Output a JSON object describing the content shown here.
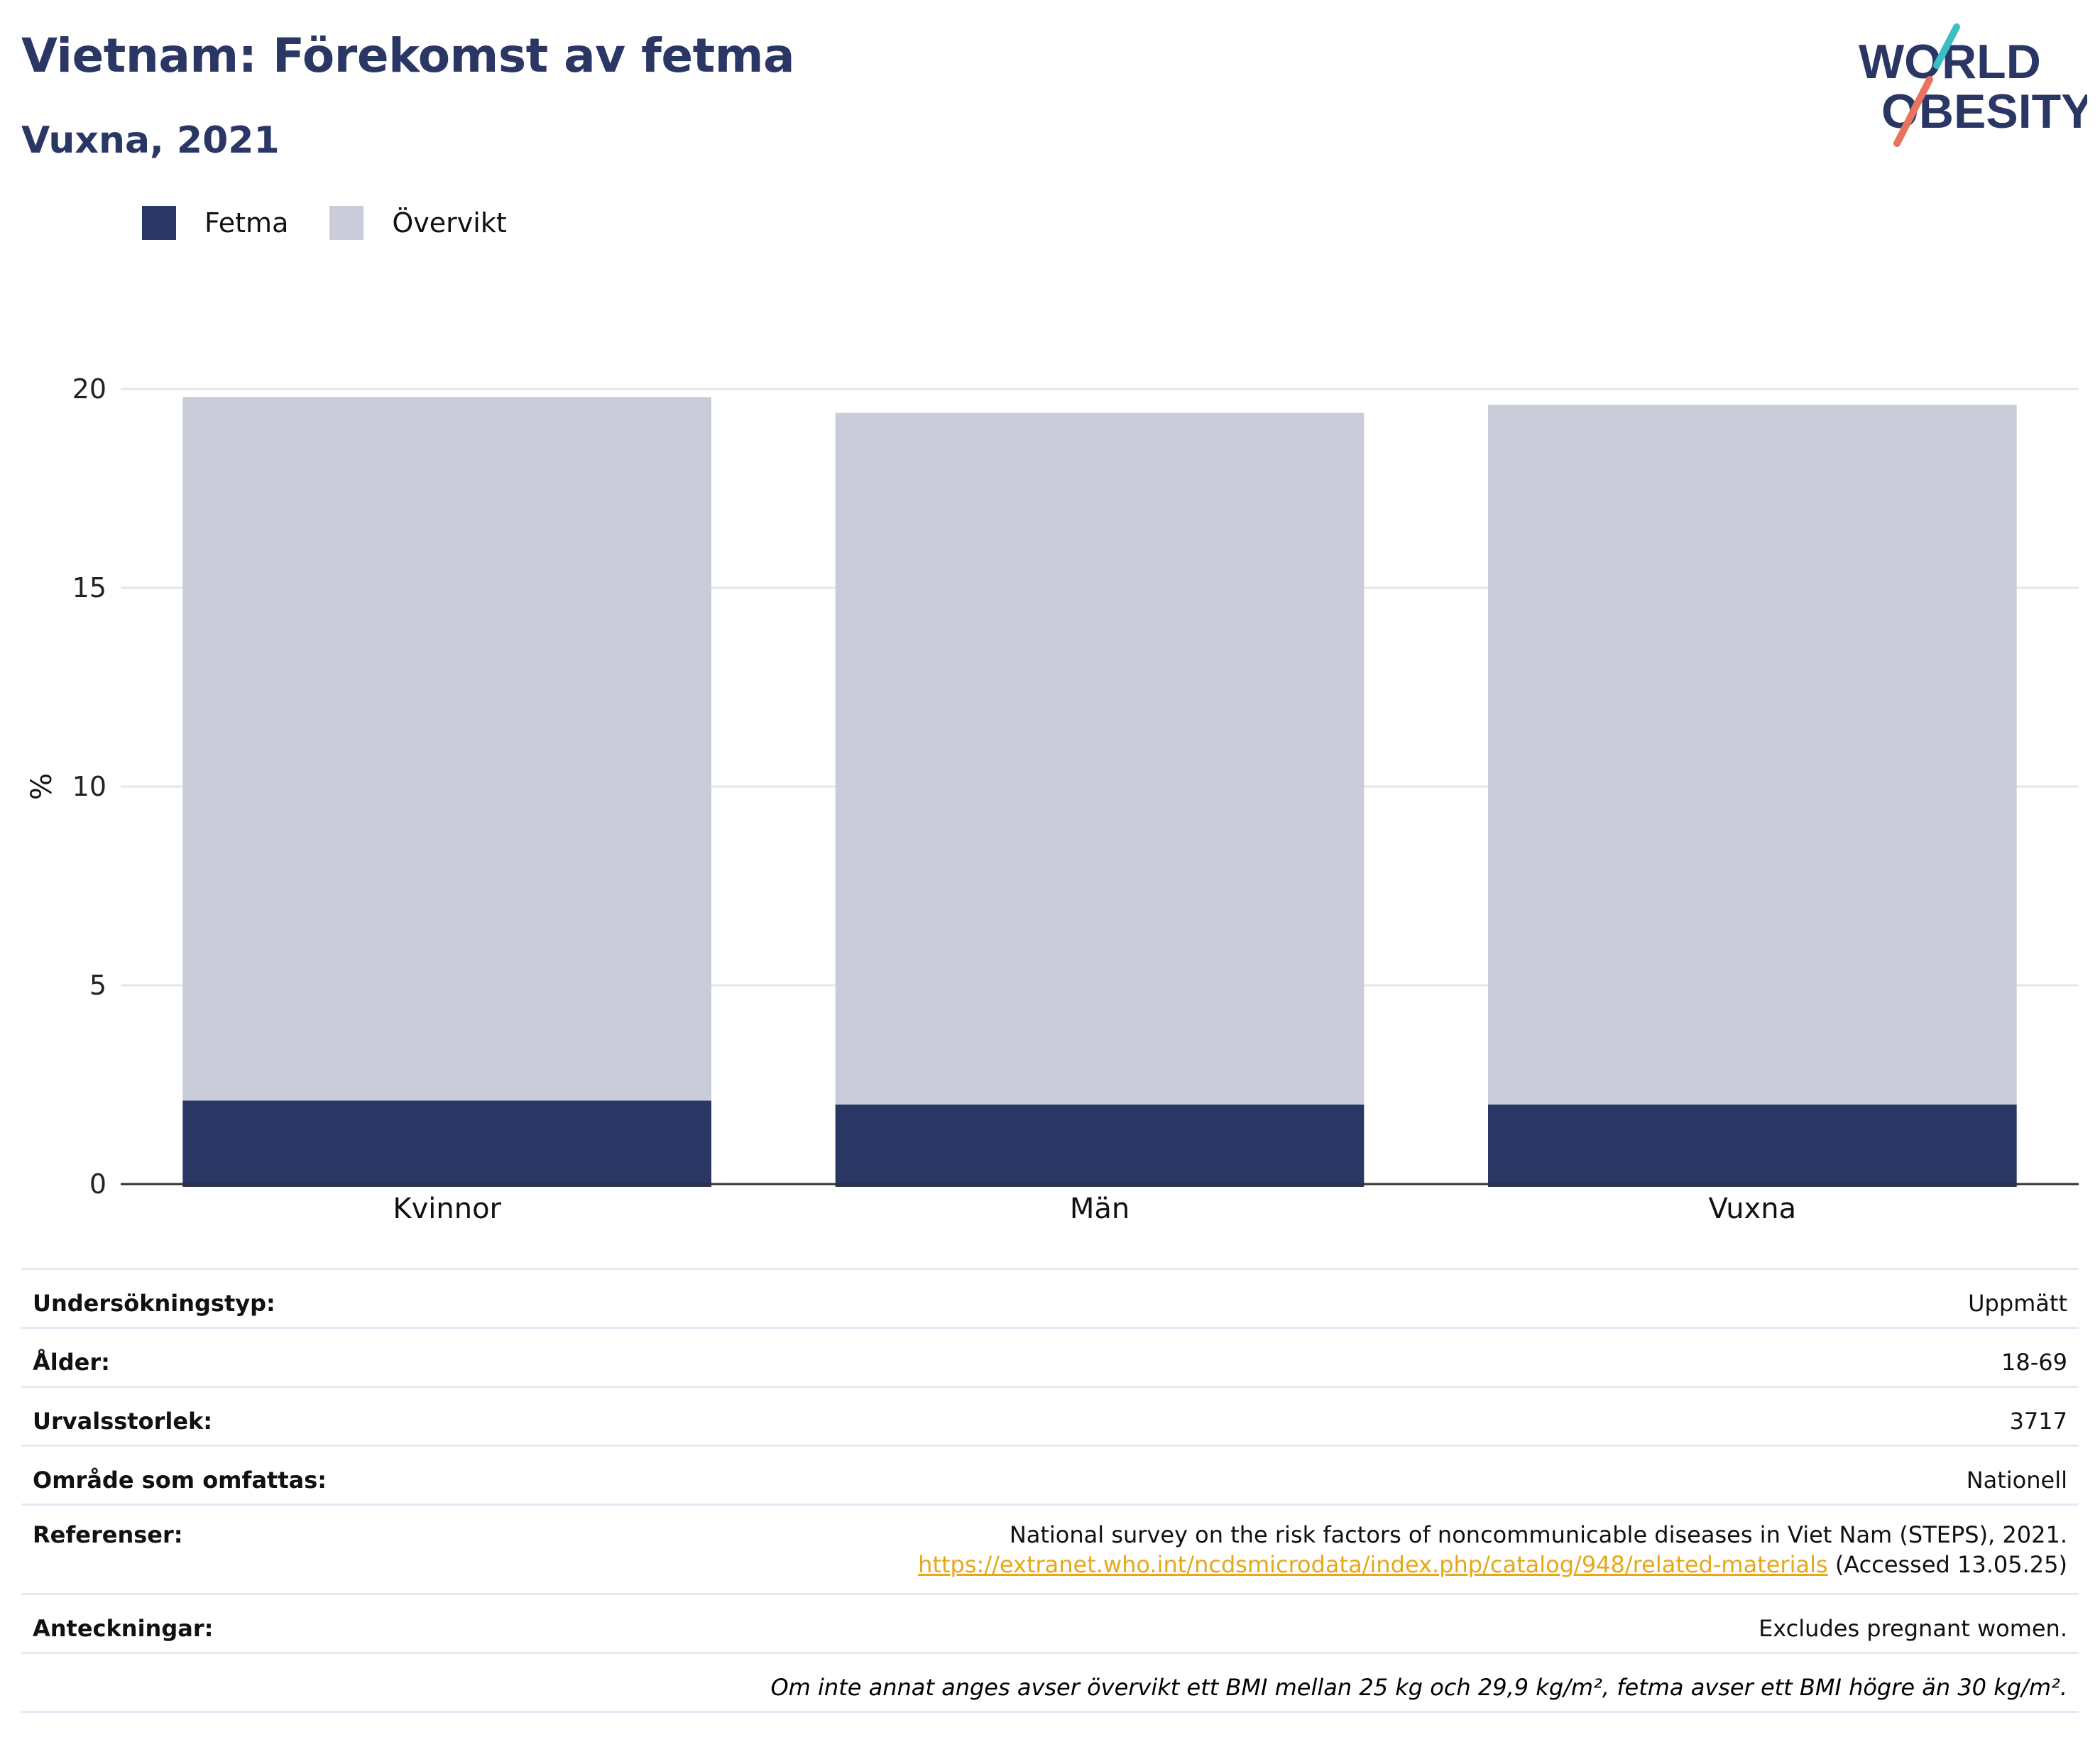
{
  "header": {
    "title": "Vietnam: Förekomst av fetma",
    "subtitle": "Vuxna, 2021"
  },
  "logo": {
    "line1": "WORLD",
    "line2": "OBESITY",
    "colors": {
      "text": "#2a3664",
      "slash_top": "#3bbfc3",
      "slash_bottom": "#e8735f"
    }
  },
  "colors": {
    "fetma": "#2a3664",
    "overvikt": "#cacdd9",
    "grid": "#e6e6ea",
    "axis": "#333333"
  },
  "chart_data": {
    "type": "bar",
    "stacked": true,
    "categories": [
      "Kvinnor",
      "Män",
      "Vuxna"
    ],
    "series": [
      {
        "name": "Fetma",
        "values": [
          2.1,
          2.0,
          2.0
        ]
      },
      {
        "name": "Övervikt",
        "values": [
          17.7,
          17.4,
          17.6
        ]
      }
    ],
    "ylabel": "%",
    "xlabel": "",
    "ylim": [
      0,
      20
    ],
    "yticks": [
      0,
      5,
      10,
      15,
      20
    ],
    "grid": true,
    "legend": "top-left"
  },
  "info": {
    "rows": [
      {
        "label": "Undersökningstyp:",
        "value": "Uppmätt"
      },
      {
        "label": "Ålder:",
        "value": "18-69"
      },
      {
        "label": "Urvalsstorlek:",
        "value": "3717"
      },
      {
        "label": "Område som omfattas:",
        "value": "Nationell"
      }
    ],
    "references": {
      "label": "Referenser:",
      "text": "National survey on the risk factors of noncommunicable diseases in Viet Nam (STEPS), 2021.",
      "link": "https://extranet.who.int/ncdsmicrodata/index.php/catalog/948/related-materials",
      "accessed": " (Accessed 13.05.25)"
    },
    "notes": {
      "label": "Anteckningar:",
      "value": "Excludes pregnant women."
    },
    "footnote": "Om inte annat anges avser övervikt ett BMI mellan 25 kg och 29,9 kg/m², fetma avser ett BMI högre än 30 kg/m²."
  }
}
